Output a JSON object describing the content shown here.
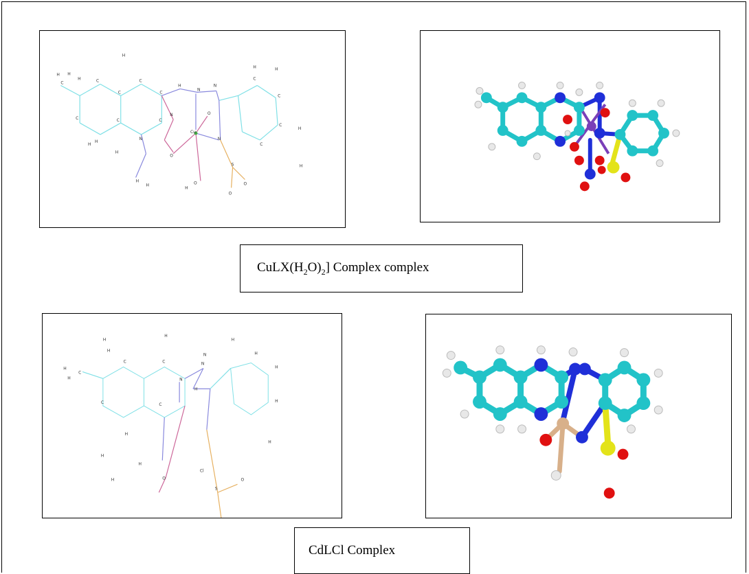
{
  "captions": {
    "cu_complex": {
      "pre": "CuLX(H",
      "sub1": "2",
      "mid": "O)",
      "sub2": "2",
      "post": "]  Complex complex"
    },
    "cd_complex": "CdLCl  Complex"
  },
  "atom_colors": {
    "carbon": "#22c3c8",
    "nitrogen": "#1f2fd8",
    "oxygen": "#e01010",
    "sulfur": "#e3e31a",
    "hydrogen": "#e8e8e8",
    "copper": "#7a3fb8",
    "cadmium": "#d8b08a"
  },
  "atom_labels": {
    "hydrogen": "H",
    "carbon": "C",
    "nitrogen": "N",
    "oxygen": "O",
    "sulfur": "S",
    "copper": "Cu",
    "chlorine": "Cl"
  }
}
